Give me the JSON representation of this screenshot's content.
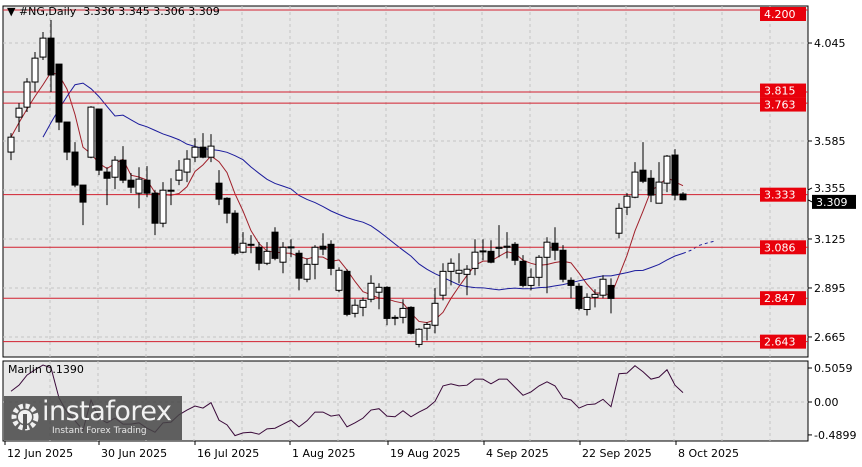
{
  "header": {
    "symbol": "#NG,Daily",
    "ohlc": "3.336 3.345 3.306 3.309",
    "menu_icon": "triangle-down-icon"
  },
  "indicator": {
    "name": "Marlin",
    "value": "0.1390"
  },
  "logo": {
    "brand": "instaforex",
    "tagline": "Instant Forex Trading"
  },
  "colors": {
    "background": "#e8e8e8",
    "level_line": "#d2202f",
    "level_label_bg": "#e8000b",
    "bull_body": "#ffffff",
    "bear_body": "#000000",
    "fast_ma": "#a0202a",
    "slow_ma": "#1c1c9c",
    "oscillator": "#3a0a3a",
    "current_price_bg": "#000000"
  },
  "chart_data": {
    "type": "candlestick",
    "price_axis_ticks": [
      "4.045",
      "3.585",
      "3.355",
      "3.125",
      "2.895",
      "2.665"
    ],
    "levels": [
      "4.200",
      "3.815",
      "3.763",
      "3.333",
      "3.086",
      "2.847",
      "2.643"
    ],
    "current_price": "3.309",
    "time_axis_ticks": [
      "12 Jun 2025",
      "30 Jun 2025",
      "16 Jul 2025",
      "1 Aug 2025",
      "19 Aug 2025",
      "4 Sep 2025",
      "22 Sep 2025",
      "8 Oct 2025"
    ],
    "oscillator_axis_ticks": [
      "0.5059",
      "0.00",
      "-0.4899"
    ],
    "grid": true,
    "candles": [
      [
        3.533,
        3.622,
        3.495,
        3.603
      ],
      [
        3.697,
        3.763,
        3.627,
        3.739
      ],
      [
        3.744,
        3.88,
        3.721,
        3.862
      ],
      [
        3.862,
        4.003,
        3.815,
        3.974
      ],
      [
        3.979,
        4.097,
        3.965,
        4.068
      ],
      [
        4.068,
        4.153,
        3.815,
        3.895
      ],
      [
        3.946,
        3.946,
        3.636,
        3.674
      ],
      [
        3.674,
        3.674,
        3.495,
        3.533
      ],
      [
        3.533,
        3.58,
        3.368,
        3.378
      ],
      [
        3.378,
        3.378,
        3.19,
        3.298
      ],
      [
        3.509,
        3.749,
        3.504,
        3.744
      ],
      [
        3.735,
        3.735,
        3.425,
        3.448
      ],
      [
        3.439,
        3.462,
        3.284,
        3.41
      ],
      [
        3.415,
        3.514,
        3.359,
        3.495
      ],
      [
        3.495,
        3.561,
        3.387,
        3.401
      ],
      [
        3.401,
        3.434,
        3.34,
        3.368
      ],
      [
        3.34,
        3.462,
        3.269,
        3.406
      ],
      [
        3.401,
        3.467,
        3.321,
        3.34
      ],
      [
        3.34,
        3.354,
        3.143,
        3.199
      ],
      [
        3.199,
        3.392,
        3.18,
        3.354
      ],
      [
        3.354,
        3.41,
        3.284,
        3.352
      ],
      [
        3.401,
        3.495,
        3.378,
        3.448
      ],
      [
        3.439,
        3.542,
        3.392,
        3.5
      ],
      [
        3.509,
        3.598,
        3.486,
        3.556
      ],
      [
        3.556,
        3.622,
        3.504,
        3.509
      ],
      [
        3.509,
        3.617,
        3.486,
        3.561
      ],
      [
        3.387,
        3.448,
        3.284,
        3.312
      ],
      [
        3.316,
        3.321,
        3.199,
        3.246
      ],
      [
        3.246,
        3.26,
        3.049,
        3.058
      ],
      [
        3.063,
        3.157,
        3.058,
        3.105
      ],
      [
        3.096,
        3.143,
        3.058,
        3.1
      ],
      [
        3.086,
        3.11,
        2.978,
        3.011
      ],
      [
        3.011,
        3.11,
        3.002,
        3.067
      ],
      [
        3.157,
        3.18,
        3.025,
        3.034
      ],
      [
        3.016,
        3.11,
        2.964,
        3.086
      ],
      [
        3.086,
        3.124,
        3.039,
        3.088
      ],
      [
        3.058,
        3.072,
        2.884,
        2.941
      ],
      [
        2.936,
        3.034,
        2.922,
        3.006
      ],
      [
        3.006,
        3.096,
        2.936,
        3.086
      ],
      [
        3.091,
        3.152,
        3.049,
        3.077
      ],
      [
        3.1,
        3.119,
        2.955,
        2.987
      ],
      [
        2.884,
        2.992,
        2.875,
        2.978
      ],
      [
        2.973,
        2.983,
        2.762,
        2.771
      ],
      [
        2.776,
        2.842,
        2.757,
        2.814
      ],
      [
        2.804,
        2.851,
        2.762,
        2.837
      ],
      [
        2.842,
        2.955,
        2.828,
        2.917
      ],
      [
        2.875,
        2.917,
        2.795,
        2.898
      ],
      [
        2.898,
        2.903,
        2.72,
        2.752
      ],
      [
        2.757,
        2.767,
        2.72,
        2.755
      ],
      [
        2.757,
        2.842,
        2.729,
        2.799
      ],
      [
        2.804,
        2.809,
        2.677,
        2.682
      ],
      [
        2.63,
        2.706,
        2.616,
        2.701
      ],
      [
        2.706,
        2.734,
        2.649,
        2.724
      ],
      [
        2.72,
        2.894,
        2.682,
        2.823
      ],
      [
        2.861,
        3.011,
        2.837,
        2.973
      ],
      [
        2.973,
        3.034,
        2.907,
        3.011
      ],
      [
        2.964,
        3.058,
        2.917,
        2.978
      ],
      [
        2.959,
        3.002,
        2.861,
        2.983
      ],
      [
        2.987,
        3.124,
        2.955,
        3.063
      ],
      [
        3.067,
        3.124,
        3.025,
        3.069
      ],
      [
        3.067,
        3.119,
        3.011,
        3.016
      ],
      [
        3.081,
        3.19,
        3.039,
        3.086
      ],
      [
        3.086,
        3.157,
        3.034,
        3.091
      ],
      [
        3.1,
        3.11,
        3.002,
        3.025
      ],
      [
        3.02,
        3.049,
        2.898,
        2.907
      ],
      [
        2.907,
        2.987,
        2.884,
        2.945
      ],
      [
        2.945,
        3.049,
        2.903,
        3.039
      ],
      [
        3.039,
        3.133,
        2.87,
        3.11
      ],
      [
        3.105,
        3.18,
        3.025,
        3.072
      ],
      [
        3.072,
        3.096,
        2.922,
        2.936
      ],
      [
        2.931,
        2.945,
        2.846,
        2.907
      ],
      [
        2.903,
        2.917,
        2.79,
        2.799
      ],
      [
        2.794,
        2.87,
        2.766,
        2.851
      ],
      [
        2.851,
        2.889,
        2.804,
        2.865
      ],
      [
        2.861,
        2.955,
        2.846,
        2.936
      ],
      [
        2.907,
        2.94,
        2.776,
        2.846
      ],
      [
        3.152,
        3.293,
        3.128,
        3.269
      ],
      [
        3.274,
        3.34,
        3.237,
        3.326
      ],
      [
        3.321,
        3.486,
        3.316,
        3.439
      ],
      [
        3.448,
        3.58,
        3.387,
        3.396
      ],
      [
        3.41,
        3.448,
        3.298,
        3.331
      ],
      [
        3.293,
        3.486,
        3.293,
        3.392
      ],
      [
        3.387,
        3.519,
        3.345,
        3.514
      ],
      [
        3.519,
        3.547,
        3.307,
        3.331
      ],
      [
        3.336,
        3.345,
        3.306,
        3.309
      ]
    ],
    "oscillator": [
      0.16,
      0.25,
      0.4,
      0.48,
      0.55,
      0.51,
      0.06,
      -0.15,
      -0.28,
      -0.42,
      0.03,
      -0.24,
      -0.31,
      -0.24,
      -0.33,
      -0.33,
      -0.31,
      -0.39,
      -0.45,
      -0.31,
      -0.3,
      -0.19,
      -0.12,
      -0.06,
      -0.09,
      -0.01,
      -0.27,
      -0.34,
      -0.5,
      -0.46,
      -0.45,
      -0.48,
      -0.4,
      -0.39,
      -0.33,
      -0.27,
      -0.37,
      -0.28,
      -0.15,
      -0.15,
      -0.21,
      -0.19,
      -0.37,
      -0.31,
      -0.24,
      -0.12,
      -0.1,
      -0.21,
      -0.22,
      -0.13,
      -0.22,
      -0.15,
      -0.09,
      0.01,
      0.24,
      0.27,
      0.24,
      0.25,
      0.34,
      0.34,
      0.27,
      0.34,
      0.34,
      0.22,
      0.1,
      0.15,
      0.24,
      0.3,
      0.24,
      0.06,
      0.03,
      -0.09,
      -0.04,
      -0.03,
      0.04,
      -0.07,
      0.42,
      0.43,
      0.54,
      0.45,
      0.34,
      0.37,
      0.48,
      0.25,
      0.139
    ]
  }
}
